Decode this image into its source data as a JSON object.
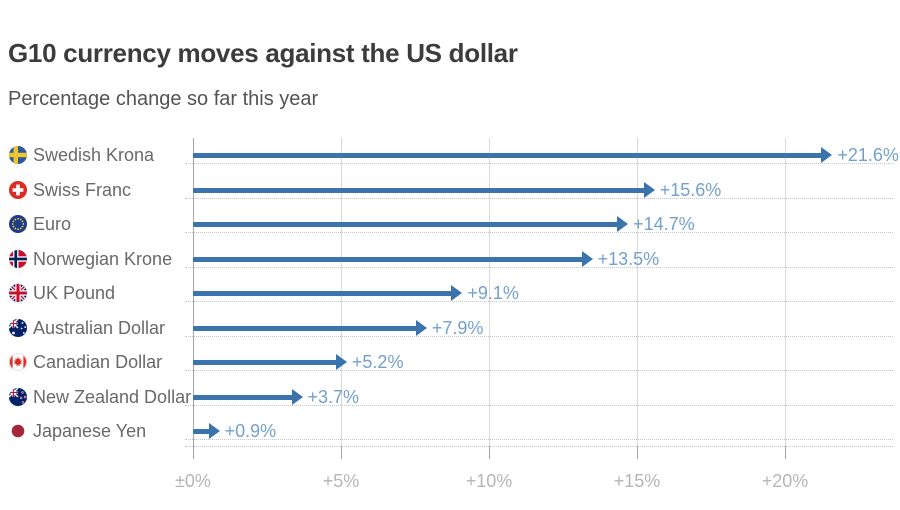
{
  "header": {
    "title": "G10 currency moves against the US dollar",
    "subtitle": "Percentage change so far this year"
  },
  "chart_data": {
    "type": "bar",
    "orientation": "horizontal-arrows",
    "title": "G10 currency moves against the US dollar",
    "subtitle": "Percentage change so far this year",
    "unit": "percent",
    "categories": [
      "Swedish Krona",
      "Swiss Franc",
      "Euro",
      "Norwegian Krone",
      "UK Pound",
      "Australian Dollar",
      "Canadian Dollar",
      "New Zealand Dollar",
      "Japanese Yen"
    ],
    "values": [
      21.6,
      15.6,
      14.7,
      13.5,
      9.1,
      7.9,
      5.2,
      3.7,
      0.9
    ],
    "value_labels": [
      "+21.6%",
      "+15.6%",
      "+14.7%",
      "+13.5%",
      "+9.1%",
      "+7.9%",
      "+5.2%",
      "+3.7%",
      "+0.9%"
    ],
    "flags": [
      "sweden",
      "switzerland",
      "eu",
      "norway",
      "uk",
      "australia",
      "canada",
      "new-zealand",
      "japan"
    ],
    "x_ticks": {
      "labels": [
        "±0%",
        "+5%",
        "+10%",
        "+15%",
        "+20%"
      ],
      "values": [
        0,
        5,
        10,
        15,
        20
      ]
    },
    "xlim": [
      0,
      23.6
    ],
    "grid": "vertical",
    "legend": "none",
    "colors": {
      "bar": "#3b74ad",
      "value_label": "#74a0cc",
      "row_label": "#696969",
      "gridline": "#d9d9d9",
      "axis": "#a8a8a8",
      "dotted": "#c6c6c6",
      "tick_label": "#b5b5b5",
      "title": "#3c3c3c",
      "subtitle": "#535353"
    }
  }
}
